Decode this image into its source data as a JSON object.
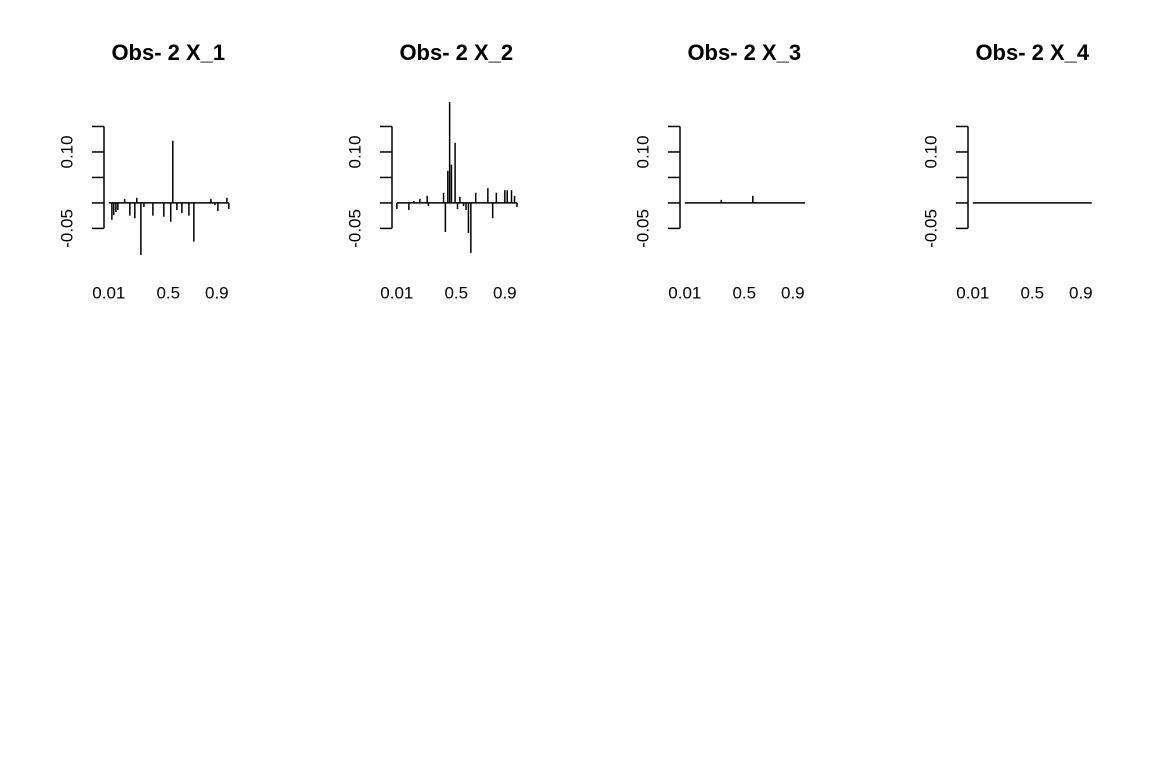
{
  "chart_data": [
    {
      "type": "bar",
      "title": "Obs- 2 X_1",
      "color": "#000000",
      "x": [
        0.01,
        0.035,
        0.05,
        0.068,
        0.084,
        0.14,
        0.183,
        0.224,
        0.24,
        0.274,
        0.299,
        0.373,
        0.463,
        0.52,
        0.537,
        0.571,
        0.612,
        0.67,
        0.711,
        0.851,
        0.884,
        0.909,
        0.983,
        0.999
      ],
      "values": [
        0,
        -0.033,
        -0.024,
        -0.018,
        -0.014,
        0.008,
        -0.025,
        -0.03,
        0.01,
        -0.102,
        -0.008,
        -0.025,
        -0.027,
        -0.037,
        0.122,
        -0.014,
        -0.02,
        -0.025,
        -0.076,
        0.008,
        -0.004,
        -0.016,
        0.01,
        -0.012
      ],
      "xlim": [
        -0.03,
        1.03
      ],
      "xticks": [
        0.01,
        0.5,
        0.9
      ],
      "ylim": [
        -0.11,
        0.2
      ],
      "yticks": [
        {
          "value": -0.05,
          "label": "-0.05"
        },
        {
          "value": 0,
          "label": null
        },
        {
          "value": 0.05,
          "label": null
        },
        {
          "value": 0.1,
          "label": "0.10"
        },
        {
          "value": 0.15,
          "label": null
        }
      ]
    },
    {
      "type": "bar",
      "title": "Obs- 2 X_2",
      "color": "#000000",
      "x": [
        0.01,
        0.109,
        0.15,
        0.2,
        0.26,
        0.27,
        0.395,
        0.41,
        0.43,
        0.445,
        0.46,
        0.49,
        0.51,
        0.53,
        0.56,
        0.58,
        0.6,
        0.62,
        0.66,
        0.76,
        0.8,
        0.83,
        0.9,
        0.92,
        0.955,
        0.98,
        1.0
      ],
      "values": [
        -0.012,
        -0.014,
        0.004,
        0.008,
        0.014,
        -0.006,
        0.02,
        -0.057,
        0.063,
        0.198,
        0.075,
        0.118,
        -0.012,
        0.012,
        -0.006,
        -0.014,
        -0.059,
        -0.098,
        0.02,
        0.029,
        -0.03,
        0.02,
        0.025,
        0.025,
        0.025,
        0.014,
        -0.008
      ],
      "xlim": [
        -0.03,
        1.03
      ],
      "xticks": [
        0.01,
        0.5,
        0.9
      ],
      "ylim": [
        -0.11,
        0.2
      ],
      "yticks": [
        {
          "value": -0.05,
          "label": "-0.05"
        },
        {
          "value": 0,
          "label": null
        },
        {
          "value": 0.05,
          "label": null
        },
        {
          "value": 0.1,
          "label": "0.10"
        },
        {
          "value": 0.15,
          "label": null
        }
      ]
    },
    {
      "type": "bar",
      "title": "Obs- 2 X_3",
      "color": "#000000",
      "x": [
        0.01,
        0.31,
        0.57,
        1.0
      ],
      "values": [
        0,
        0.006,
        0.014,
        0
      ],
      "xlim": [
        -0.03,
        1.03
      ],
      "xticks": [
        0.01,
        0.5,
        0.9
      ],
      "ylim": [
        -0.11,
        0.2
      ],
      "yticks": [
        {
          "value": -0.05,
          "label": "-0.05"
        },
        {
          "value": 0,
          "label": null
        },
        {
          "value": 0.05,
          "label": null
        },
        {
          "value": 0.1,
          "label": "0.10"
        },
        {
          "value": 0.15,
          "label": null
        }
      ]
    },
    {
      "type": "bar",
      "title": "Obs- 2 X_4",
      "color": "#000000",
      "x": [
        0.01,
        0.99
      ],
      "values": [
        0,
        0
      ],
      "xlim": [
        -0.03,
        1.03
      ],
      "xticks": [
        0.01,
        0.5,
        0.9
      ],
      "ylim": [
        -0.11,
        0.2
      ],
      "yticks": [
        {
          "value": -0.05,
          "label": "-0.05"
        },
        {
          "value": 0,
          "label": null
        },
        {
          "value": 0.05,
          "label": null
        },
        {
          "value": 0.1,
          "label": "0.10"
        },
        {
          "value": 0.15,
          "label": null
        }
      ]
    }
  ]
}
